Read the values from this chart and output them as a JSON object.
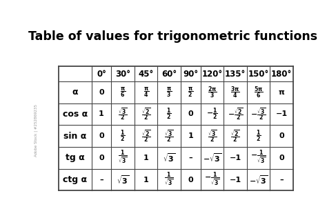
{
  "title": "Table of values for trigonometric functions",
  "title_fontsize": 12.5,
  "title_fontweight": "bold",
  "background_color": "#ffffff",
  "col_headers": [
    "",
    "0°",
    "30°",
    "45°",
    "60°",
    "90°",
    "120°",
    "135°",
    "150°",
    "180°"
  ],
  "row_labels": [
    "α",
    "cos α",
    "sin α",
    "tg α",
    "ctg α"
  ],
  "table_data": [
    [
      "0",
      "$\\mathbf{\\frac{\\pi}{6}}$",
      "$\\mathbf{\\frac{\\pi}{4}}$",
      "$\\mathbf{\\frac{\\pi}{3}}$",
      "$\\mathbf{\\frac{\\pi}{2}}$",
      "$\\mathbf{\\frac{2\\pi}{3}}$",
      "$\\mathbf{\\frac{3\\pi}{4}}$",
      "$\\mathbf{\\frac{5\\pi}{6}}$",
      "$\\mathbf{\\pi}$"
    ],
    [
      "1",
      "$\\mathbf{\\frac{\\sqrt{3}}{2}}$",
      "$\\mathbf{\\frac{\\sqrt{2}}{2}}$",
      "$\\mathbf{\\frac{1}{2}}$",
      "0",
      "$\\mathbf{-\\frac{1}{2}}$",
      "$\\mathbf{-\\frac{\\sqrt{2}}{2}}$",
      "$\\mathbf{-\\frac{\\sqrt{3}}{2}}$",
      "−1"
    ],
    [
      "0",
      "$\\mathbf{\\frac{1}{2}}$",
      "$\\mathbf{\\frac{\\sqrt{2}}{2}}$",
      "$\\mathbf{\\frac{\\sqrt{3}}{2}}$",
      "1",
      "$\\mathbf{\\frac{\\sqrt{3}}{2}}$",
      "$\\mathbf{\\frac{\\sqrt{2}}{2}}$",
      "$\\mathbf{\\frac{1}{2}}$",
      "0"
    ],
    [
      "0",
      "$\\mathbf{\\frac{1}{\\sqrt{3}}}$",
      "1",
      "$\\mathbf{\\sqrt{3}}$",
      "–",
      "$\\mathbf{-\\sqrt{3}}$",
      "−1",
      "$\\mathbf{-\\frac{1}{\\sqrt{3}}}$",
      "0"
    ],
    [
      "–",
      "$\\mathbf{\\sqrt{3}}$",
      "1",
      "$\\mathbf{\\frac{1}{\\sqrt{3}}}$",
      "0",
      "$\\mathbf{-\\frac{1}{\\sqrt{3}}}$",
      "−1",
      "$\\mathbf{-\\sqrt{3}}$",
      "–"
    ]
  ],
  "watermark": "Adobe Stock | #252869235",
  "line_color": "#444444",
  "text_color": "#000000"
}
